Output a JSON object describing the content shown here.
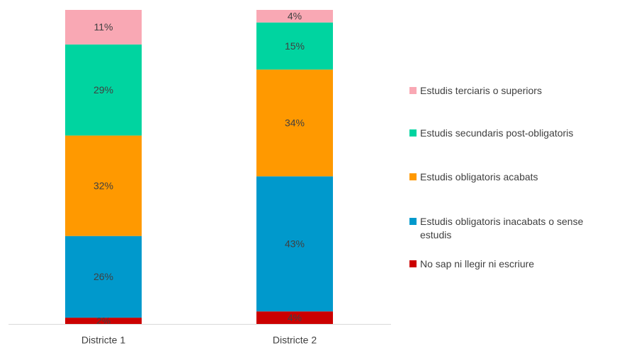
{
  "chart_data": {
    "type": "stacked_bar",
    "categories": [
      "Districte 1",
      "Districte 2"
    ],
    "series": [
      {
        "name": "No sap ni llegir ni escriure",
        "color": "#cc0000",
        "values": [
          2,
          4
        ],
        "value_labels": [
          "2%",
          "4%"
        ]
      },
      {
        "name": "Estudis obligatoris inacabats o sense estudis",
        "color": "#0099cc",
        "values": [
          26,
          43
        ],
        "value_labels": [
          "26%",
          "43%"
        ]
      },
      {
        "name": "Estudis obligatoris acabats",
        "color": "#ff9900",
        "values": [
          32,
          34
        ],
        "value_labels": [
          "32%",
          "34%"
        ]
      },
      {
        "name": "Estudis secundaris post-obligatoris",
        "color": "#00d4a0",
        "values": [
          29,
          15
        ],
        "value_labels": [
          "29%",
          "15%"
        ]
      },
      {
        "name": "Estudis terciaris o superiors",
        "color": "#f9a8b4",
        "values": [
          11,
          4
        ],
        "value_labels": [
          "11%",
          "4%"
        ]
      }
    ]
  }
}
